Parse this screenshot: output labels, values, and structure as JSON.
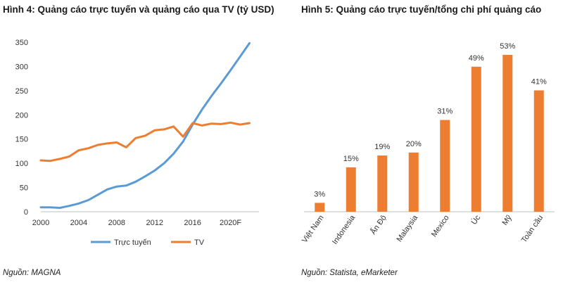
{
  "chart_data": [
    {
      "id": "hinh4",
      "type": "line",
      "title": "Hình 4: Quảng cáo trực tuyến và quảng cáo qua TV (tỷ USD)",
      "source": "Nguồn: MAGNA",
      "xlabel": "",
      "ylabel": "",
      "xlim": [
        2000,
        2023
      ],
      "ylim": [
        0,
        350
      ],
      "y_ticks": [
        0,
        50,
        100,
        150,
        200,
        250,
        300,
        350
      ],
      "x_ticks": [
        2000,
        2004,
        2008,
        2012,
        2016,
        2020
      ],
      "x_tick_labels": [
        "2000",
        "2004",
        "2008",
        "2012",
        "2016",
        "2020F"
      ],
      "legend_position": "bottom",
      "series": [
        {
          "name": "Trực tuyến",
          "color": "#5b9bd5",
          "x": [
            2000,
            2001,
            2002,
            2003,
            2004,
            2005,
            2006,
            2007,
            2008,
            2009,
            2010,
            2011,
            2012,
            2013,
            2014,
            2015,
            2016,
            2017,
            2018,
            2019,
            2020,
            2021,
            2022
          ],
          "values": [
            9,
            9,
            8,
            12,
            17,
            24,
            35,
            46,
            52,
            54,
            62,
            73,
            85,
            100,
            120,
            145,
            180,
            211,
            239,
            265,
            292,
            320,
            348
          ]
        },
        {
          "name": "TV",
          "color": "#ed7d31",
          "x": [
            2000,
            2001,
            2002,
            2003,
            2004,
            2005,
            2006,
            2007,
            2008,
            2009,
            2010,
            2011,
            2012,
            2013,
            2014,
            2015,
            2016,
            2017,
            2018,
            2019,
            2020,
            2021,
            2022
          ],
          "values": [
            106,
            105,
            109,
            114,
            127,
            131,
            138,
            141,
            143,
            133,
            152,
            157,
            168,
            170,
            176,
            155,
            183,
            178,
            182,
            181,
            184,
            180,
            183
          ]
        }
      ]
    },
    {
      "id": "hinh5",
      "type": "bar",
      "title": "Hình 5: Quảng cáo trực tuyến/tổng chi phí quảng cáo",
      "source": "Nguồn: Statista, eMarketer",
      "xlabel": "",
      "ylabel": "",
      "ylim": [
        0,
        60
      ],
      "color": "#ed7d31",
      "categories": [
        "Việt Nam",
        "Indonesia",
        "Ấn Độ",
        "Malaysia",
        "Mexico",
        "Úc",
        "Mỹ",
        "Toàn cầu"
      ],
      "values": [
        3,
        15,
        19,
        20,
        31,
        49,
        53,
        41
      ],
      "value_labels": [
        "3%",
        "15%",
        "19%",
        "20%",
        "31%",
        "49%",
        "53%",
        "41%"
      ]
    }
  ]
}
